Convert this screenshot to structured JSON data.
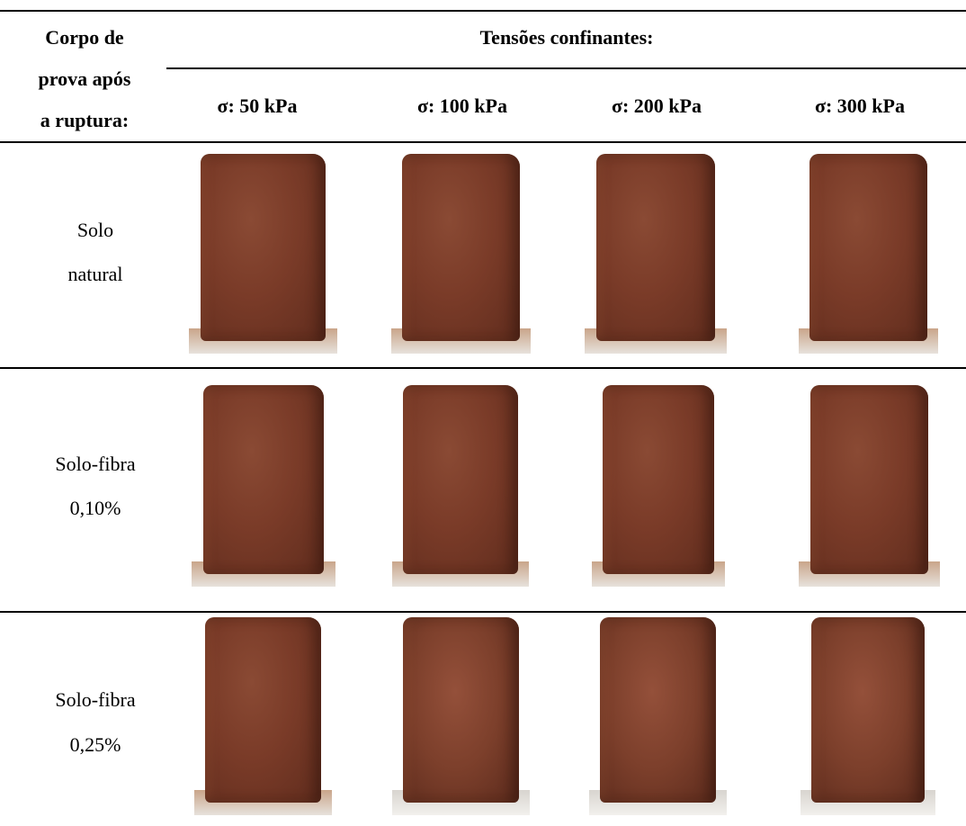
{
  "table": {
    "corner_label": [
      "Corpo de",
      "prova após",
      "a ruptura:"
    ],
    "group_header": "Tensões confinantes:",
    "columns": [
      "σ: 50 kPa",
      "σ: 100 kPa",
      "σ: 200 kPa",
      "σ: 300 kPa"
    ],
    "rows": [
      {
        "label": [
          "Solo",
          "natural"
        ]
      },
      {
        "label": [
          "Solo-fibra",
          "0,10%"
        ]
      },
      {
        "label": [
          "Solo-fibra",
          "0,25%"
        ]
      }
    ]
  }
}
